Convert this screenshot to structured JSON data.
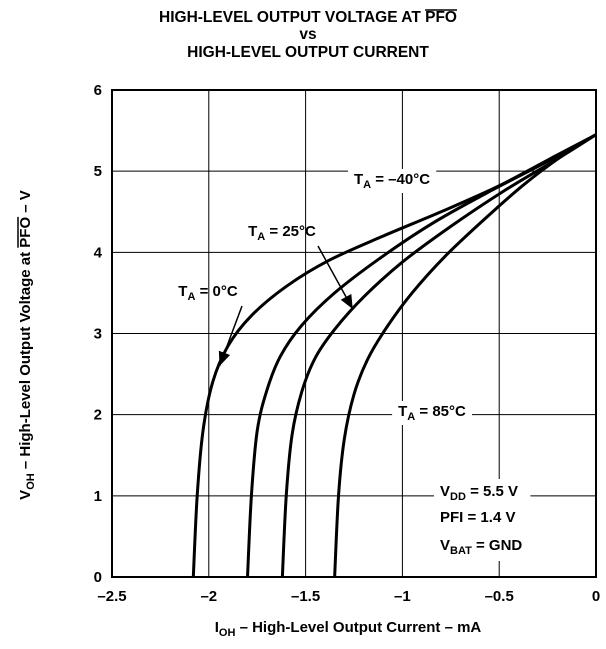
{
  "chart_data": {
    "type": "line",
    "title_lines": [
      "HIGH-LEVEL OUTPUT VOLTAGE AT PFO",
      "vs",
      "HIGH-LEVEL OUTPUT CURRENT"
    ],
    "title_prefix": "HIGH-LEVEL OUTPUT VOLTAGE AT ",
    "title_overlined": "PFO",
    "xlabel": {
      "main": "I",
      "sub": "OH",
      "rest": " – High-Level Output Current – mA"
    },
    "ylabel": {
      "main": "V",
      "sub": "OH",
      "rest": " – High-Level Output Voltage at ",
      "overlined": "PFO",
      "suffix": " – V"
    },
    "xlim": [
      -2.5,
      0
    ],
    "ylim": [
      0,
      6
    ],
    "x_ticks": [
      -2.5,
      -2,
      -1.5,
      -1,
      -0.5,
      0
    ],
    "x_tick_labels": [
      "–2.5",
      "–2",
      "–1.5",
      "–1",
      "–0.5",
      "0"
    ],
    "y_ticks": [
      0,
      1,
      2,
      3,
      4,
      5,
      6
    ],
    "y_tick_labels": [
      "0",
      "1",
      "2",
      "3",
      "4",
      "5",
      "6"
    ],
    "grid": true,
    "series": [
      {
        "name": "TA = 0°C",
        "label_main": "T",
        "label_sub": "A",
        "label_rest": " = 0°C",
        "x": [
          -2.08,
          -2.06,
          -2.03,
          -1.98,
          -1.9,
          -1.78,
          -1.6,
          -1.38,
          -1.1,
          -0.8,
          -0.5,
          -0.2,
          0
        ],
        "y": [
          0,
          1.0,
          1.8,
          2.4,
          2.85,
          3.22,
          3.58,
          3.9,
          4.2,
          4.5,
          4.82,
          5.2,
          5.45
        ]
      },
      {
        "name": "TA = -40°C",
        "label_main": "T",
        "label_sub": "A",
        "label_rest": " = –40°C",
        "x": [
          -1.8,
          -1.78,
          -1.75,
          -1.7,
          -1.63,
          -1.52,
          -1.35,
          -1.12,
          -0.85,
          -0.55,
          -0.25,
          0
        ],
        "y": [
          0,
          1.0,
          1.8,
          2.3,
          2.72,
          3.1,
          3.5,
          3.92,
          4.35,
          4.75,
          5.12,
          5.45
        ]
      },
      {
        "name": "TA = 25°C",
        "label_main": "T",
        "label_sub": "A",
        "label_rest": " = 25°C",
        "x": [
          -1.62,
          -1.6,
          -1.57,
          -1.52,
          -1.45,
          -1.35,
          -1.2,
          -1.0,
          -0.75,
          -0.48,
          -0.2,
          0
        ],
        "y": [
          0,
          1.0,
          1.75,
          2.28,
          2.7,
          3.05,
          3.45,
          3.88,
          4.32,
          4.75,
          5.15,
          5.45
        ]
      },
      {
        "name": "TA = 85°C",
        "label_main": "T",
        "label_sub": "A",
        "label_rest": " = 85°C",
        "x": [
          -1.35,
          -1.33,
          -1.3,
          -1.25,
          -1.18,
          -1.08,
          -0.95,
          -0.78,
          -0.58,
          -0.38,
          -0.18,
          0
        ],
        "y": [
          0,
          1.0,
          1.7,
          2.25,
          2.68,
          3.08,
          3.5,
          3.95,
          4.4,
          4.82,
          5.18,
          5.45
        ]
      }
    ],
    "conditions": [
      {
        "main": "V",
        "sub": "DD",
        "rest": " = 5.5 V"
      },
      {
        "main": "PFI = 1.4 V",
        "sub": "",
        "rest": ""
      },
      {
        "main": "V",
        "sub": "BAT",
        "rest": " = GND"
      }
    ]
  }
}
